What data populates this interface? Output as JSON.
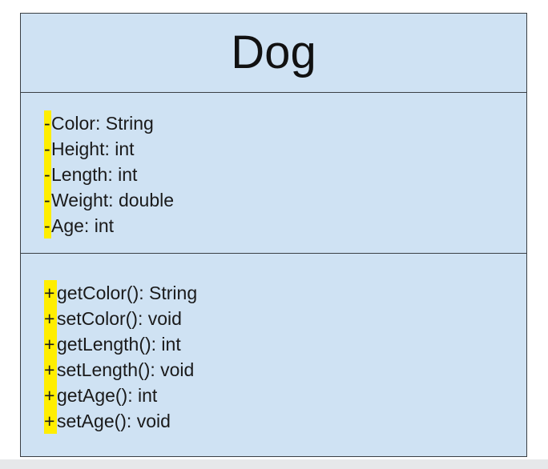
{
  "uml_class": {
    "name": "Dog",
    "attributes": [
      {
        "visibility": "-",
        "text": "Color: String"
      },
      {
        "visibility": "-",
        "text": "Height: int"
      },
      {
        "visibility": "-",
        "text": "Length: int"
      },
      {
        "visibility": "-",
        "text": "Weight: double"
      },
      {
        "visibility": "-",
        "text": "Age: int"
      }
    ],
    "operations": [
      {
        "visibility": "+",
        "text": "getColor(): String"
      },
      {
        "visibility": "+",
        "text": "setColor(): void"
      },
      {
        "visibility": "+",
        "text": "getLength(): int"
      },
      {
        "visibility": "+",
        "text": "setLength(): void"
      },
      {
        "visibility": "+",
        "text": "getAge(): int"
      },
      {
        "visibility": "+",
        "text": "setAge(): void"
      }
    ]
  },
  "colors": {
    "class_fill": "#cfe2f3",
    "border": "#3a3f44",
    "highlight": "#ffee00"
  }
}
